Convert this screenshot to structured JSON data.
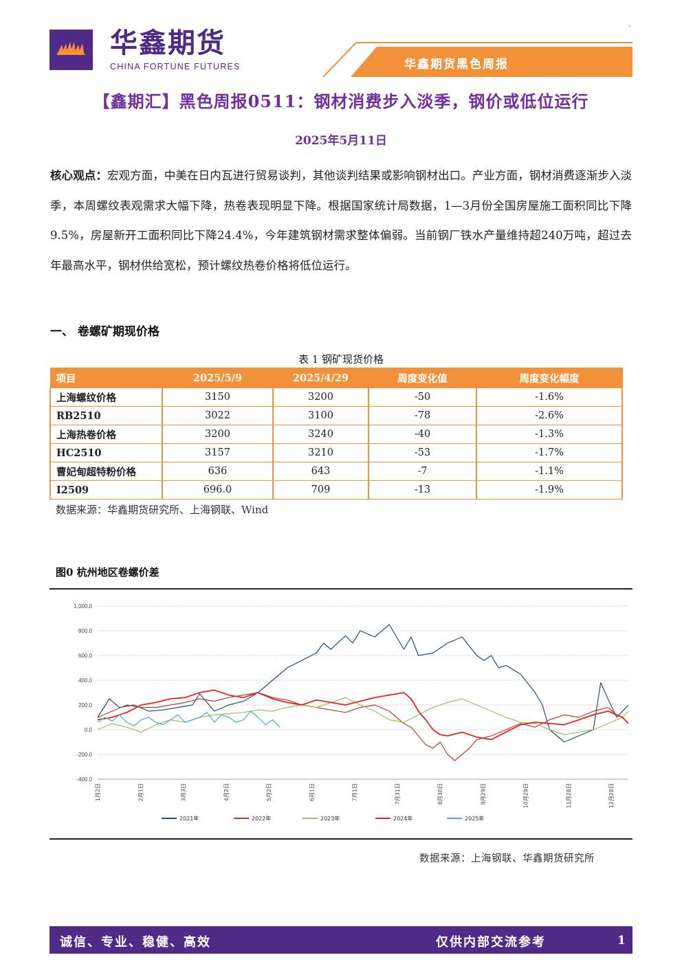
{
  "header": {
    "logo_cn": "华鑫期货",
    "logo_en": "CHINA FORTUNE FUTURES",
    "band_text": "华鑫期货黑色周报",
    "logo_icon": "fortune-flames-icon",
    "colors": {
      "purple": "#4f2a86",
      "orange": "#f2913a"
    }
  },
  "title": "【鑫期汇】黑色周报0511：钢材消费步入淡季，钢价或低位运行",
  "date": "2025年5月11日",
  "core": {
    "lead": "核心观点：",
    "text": "宏观方面，中美在日内瓦进行贸易谈判，其他谈判结果或影响钢材出口。产业方面，钢材消费逐渐步入淡季，本周螺纹表观需求大幅下降，热卷表现明显下降。根据国家统计局数据，1—3月份全国房屋施工面积同比下降9.5%，房屋新开工面积同比下降24.4%，今年建筑钢材需求整体偏弱。当前钢厂铁水产量维持超240万吨，超过去年最高水平，钢材供给宽松，预计螺纹热卷价格将低位运行。"
  },
  "section1": "一、 卷螺矿期现价格",
  "table": {
    "caption": "表 1 钢矿现货价格",
    "headers": [
      "项目",
      "2025/5/9",
      "2025/4/29",
      "周度变化值",
      "周度变化幅度"
    ],
    "rows": [
      [
        "上海螺纹价格",
        "3150",
        "3200",
        "-50",
        "-1.6%"
      ],
      [
        "RB2510",
        "3022",
        "3100",
        "-78",
        "-2.6%"
      ],
      [
        "上海热卷价格",
        "3200",
        "3240",
        "-40",
        "-1.3%"
      ],
      [
        "HC2510",
        "3157",
        "3210",
        "-53",
        "-1.7%"
      ],
      [
        "曹妃甸超特粉价格",
        "636",
        "643",
        "-7",
        "-1.1%"
      ],
      [
        "I2509",
        "696.0",
        "709",
        "-13",
        "-1.9%"
      ]
    ],
    "source": "数据来源：华鑫期货研究所、上海钢联、Wind"
  },
  "figure": {
    "title": "图0 杭州地区卷螺价差",
    "source": "数据来源：上海钢联、华鑫期货研究所"
  },
  "chart_data": {
    "type": "line",
    "title": "",
    "xlabel": "",
    "ylabel": "",
    "ylim": [
      -400,
      1000
    ],
    "yticks": [
      "1,000.0",
      "800.0",
      "600.0",
      "400.0",
      "200.0",
      "0.0",
      "-200.0",
      "-400.0"
    ],
    "x_ticks": [
      "1月2日",
      "2月1日",
      "3月3日",
      "4月2日",
      "5月2日",
      "6月1日",
      "7月1日",
      "7月31日",
      "8月30日",
      "9月29日",
      "10月29日",
      "11月28日",
      "12月28日"
    ],
    "grid": true,
    "legend_position": "bottom",
    "series": [
      {
        "name": "2021年",
        "color": "#1f4e79",
        "x": [
          0,
          8,
          15,
          25,
          35,
          45,
          55,
          65,
          70,
          80,
          90,
          100,
          110,
          120,
          130,
          140,
          150,
          155,
          160,
          170,
          175,
          180,
          190,
          200,
          210,
          215,
          220,
          230,
          240,
          250,
          260,
          265,
          270,
          275,
          280,
          290,
          300,
          305,
          310,
          320,
          330,
          340,
          345,
          350,
          356,
          364
        ],
        "y": [
          100,
          250,
          180,
          200,
          150,
          160,
          180,
          200,
          290,
          150,
          200,
          230,
          300,
          400,
          500,
          560,
          620,
          700,
          650,
          760,
          700,
          800,
          750,
          850,
          650,
          750,
          600,
          620,
          700,
          750,
          600,
          560,
          600,
          500,
          520,
          450,
          300,
          200,
          0,
          -100,
          -50,
          0,
          380,
          250,
          100,
          200
        ]
      },
      {
        "name": "2022年",
        "color": "#c0392b",
        "x": [
          0,
          10,
          20,
          30,
          40,
          50,
          60,
          70,
          80,
          90,
          100,
          110,
          120,
          130,
          140,
          150,
          160,
          170,
          180,
          190,
          200,
          205,
          210,
          215,
          220,
          225,
          230,
          235,
          240,
          245,
          250,
          255,
          260,
          270,
          280,
          290,
          300,
          310,
          320,
          330,
          340,
          350,
          356
        ],
        "y": [
          100,
          150,
          200,
          180,
          180,
          200,
          220,
          250,
          230,
          260,
          280,
          300,
          260,
          240,
          200,
          180,
          160,
          140,
          180,
          200,
          150,
          100,
          50,
          20,
          -50,
          -120,
          -150,
          -100,
          -200,
          -250,
          -200,
          -150,
          -80,
          -50,
          0,
          50,
          20,
          80,
          120,
          100,
          150,
          180,
          120
        ]
      },
      {
        "name": "2023年",
        "color": "#9bbb59",
        "x": [
          0,
          10,
          20,
          30,
          40,
          50,
          60,
          70,
          80,
          90,
          100,
          110,
          120,
          130,
          140,
          150,
          160,
          170,
          180,
          190,
          200,
          210,
          220,
          230,
          240,
          250,
          260,
          270,
          280,
          290,
          300,
          310,
          320,
          330,
          340,
          350,
          360,
          364
        ],
        "y": [
          0,
          50,
          20,
          -20,
          40,
          80,
          60,
          100,
          120,
          130,
          140,
          160,
          150,
          180,
          200,
          180,
          220,
          260,
          200,
          150,
          80,
          60,
          120,
          180,
          220,
          250,
          200,
          150,
          100,
          60,
          50,
          0,
          -40,
          -20,
          0,
          50,
          100,
          150
        ]
      },
      {
        "name": "2024年",
        "color": "#e8221e",
        "x": [
          0,
          10,
          20,
          30,
          40,
          50,
          60,
          70,
          80,
          90,
          100,
          110,
          120,
          130,
          140,
          150,
          160,
          170,
          180,
          190,
          200,
          210,
          215,
          220,
          225,
          230,
          235,
          240,
          250,
          260,
          270,
          280,
          290,
          300,
          310,
          320,
          330,
          340,
          350,
          360,
          364
        ],
        "y": [
          80,
          100,
          140,
          200,
          220,
          250,
          260,
          300,
          320,
          280,
          260,
          300,
          250,
          220,
          200,
          240,
          220,
          200,
          230,
          260,
          280,
          300,
          250,
          150,
          80,
          0,
          -40,
          -50,
          -20,
          -60,
          -80,
          -20,
          40,
          60,
          50,
          40,
          80,
          120,
          150,
          100,
          50
        ]
      },
      {
        "name": "2025年",
        "color": "#4bacc6",
        "x": [
          0,
          5,
          10,
          15,
          20,
          25,
          30,
          35,
          40,
          45,
          50,
          55,
          60,
          65,
          70,
          75,
          80,
          85,
          90,
          95,
          100,
          105,
          110,
          115,
          120,
          125
        ],
        "y": [
          60,
          100,
          70,
          120,
          60,
          30,
          80,
          100,
          60,
          40,
          80,
          120,
          60,
          80,
          100,
          140,
          60,
          120,
          100,
          60,
          80,
          150,
          100,
          40,
          80,
          20
        ]
      }
    ]
  },
  "footer": {
    "motto": "诚信、专业、稳健、高效",
    "note": "仅供内部交流参考",
    "page": "1"
  }
}
